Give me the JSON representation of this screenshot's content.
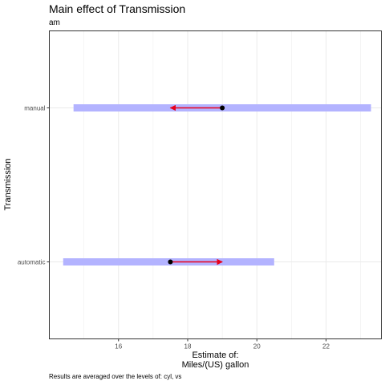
{
  "chart_data": {
    "type": "interval",
    "title": "Main effect of Transmission",
    "subtitle": "am",
    "xlabel": "Estimate of:\nMiles/(US) gallon",
    "ylabel": "Transmission",
    "caption": "Results are averaged over the levels of: cyl, vs",
    "xlim": [
      14.0,
      23.6
    ],
    "xticks": [
      16,
      18,
      20,
      22
    ],
    "categories": [
      "automatic",
      "manual"
    ],
    "estimates": [
      {
        "level": "manual",
        "emmean": 19.0,
        "lower": 14.7,
        "upper": 23.3,
        "arrow_to": 17.5
      },
      {
        "level": "automatic",
        "emmean": 17.5,
        "lower": 14.4,
        "upper": 20.5,
        "arrow_to": 19.0
      }
    ],
    "colors": {
      "ci_bar": "#b3b3ff",
      "arrow": "#e8001c",
      "point": "#000000",
      "grid": "#ebebeb",
      "panel_border": "#333333"
    },
    "grid": true
  }
}
